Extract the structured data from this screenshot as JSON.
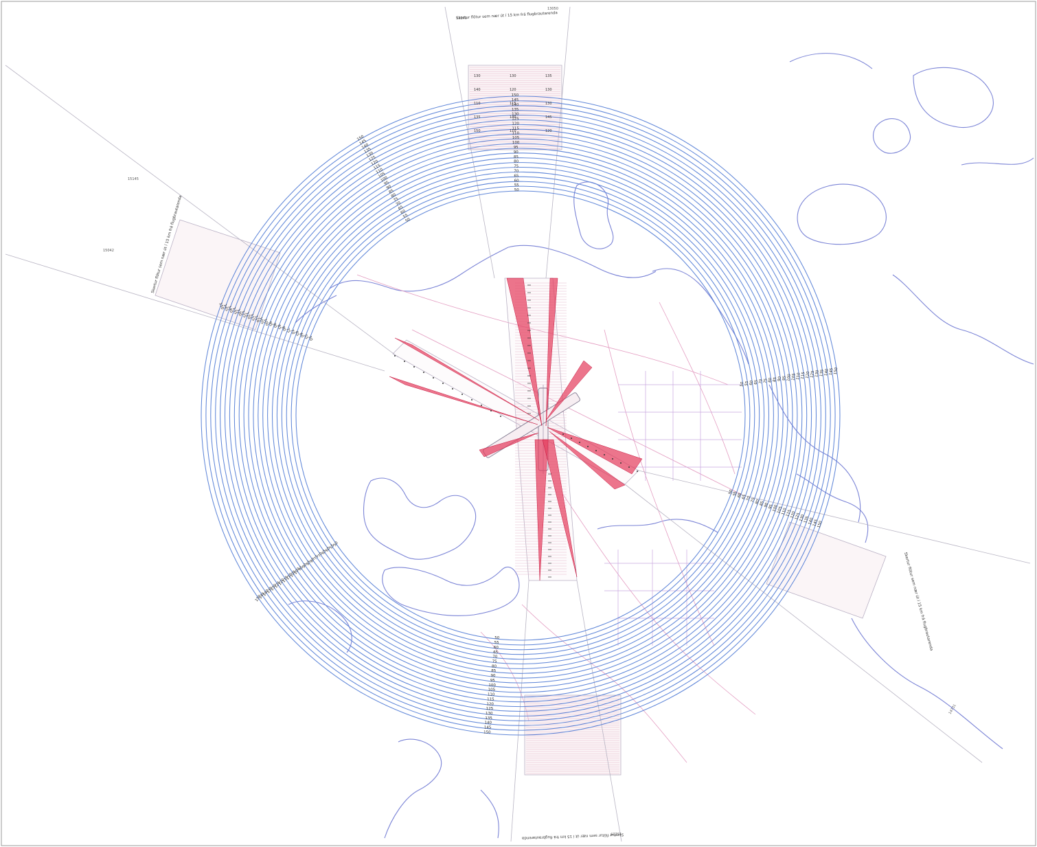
{
  "map": {
    "title": "",
    "sector_labels": {
      "north": "Skertur flötur sem nær út í 15 km frá flugbrautarenda",
      "south": "Skertur flötur sem nær út í 15 km frá flugbrautarenda",
      "west": "Skertur flötur sem nær út í 15 km frá flugbrautarenda",
      "east": "Skertur flötur sem nær út í 15 km frá flugbrautarenda"
    },
    "corner_labels": {
      "north_left": "13049",
      "north_right": "13050",
      "west_top": "15145",
      "west_mid": "15042",
      "east": "14731",
      "south": "15229"
    },
    "colors": {
      "rings": "#5f86d8",
      "coastline": "#7a83d6",
      "roads": "#e39bc0",
      "approach_surfaces": "#e44060",
      "sector_fill": "#f4e1e8"
    },
    "north_sector_values": [
      "130",
      "130",
      "135",
      "140",
      "120",
      "130",
      "110",
      "115",
      "130",
      "135",
      "140",
      "145",
      "150",
      "110",
      "120"
    ],
    "ring_elevations": [
      "150",
      "145",
      "140",
      "135",
      "130",
      "125",
      "120",
      "115",
      "110",
      "105",
      "100",
      "95",
      "90",
      "85",
      "80",
      "75",
      "70",
      "65",
      "60",
      "55",
      "50"
    ],
    "ring_count": 21
  }
}
